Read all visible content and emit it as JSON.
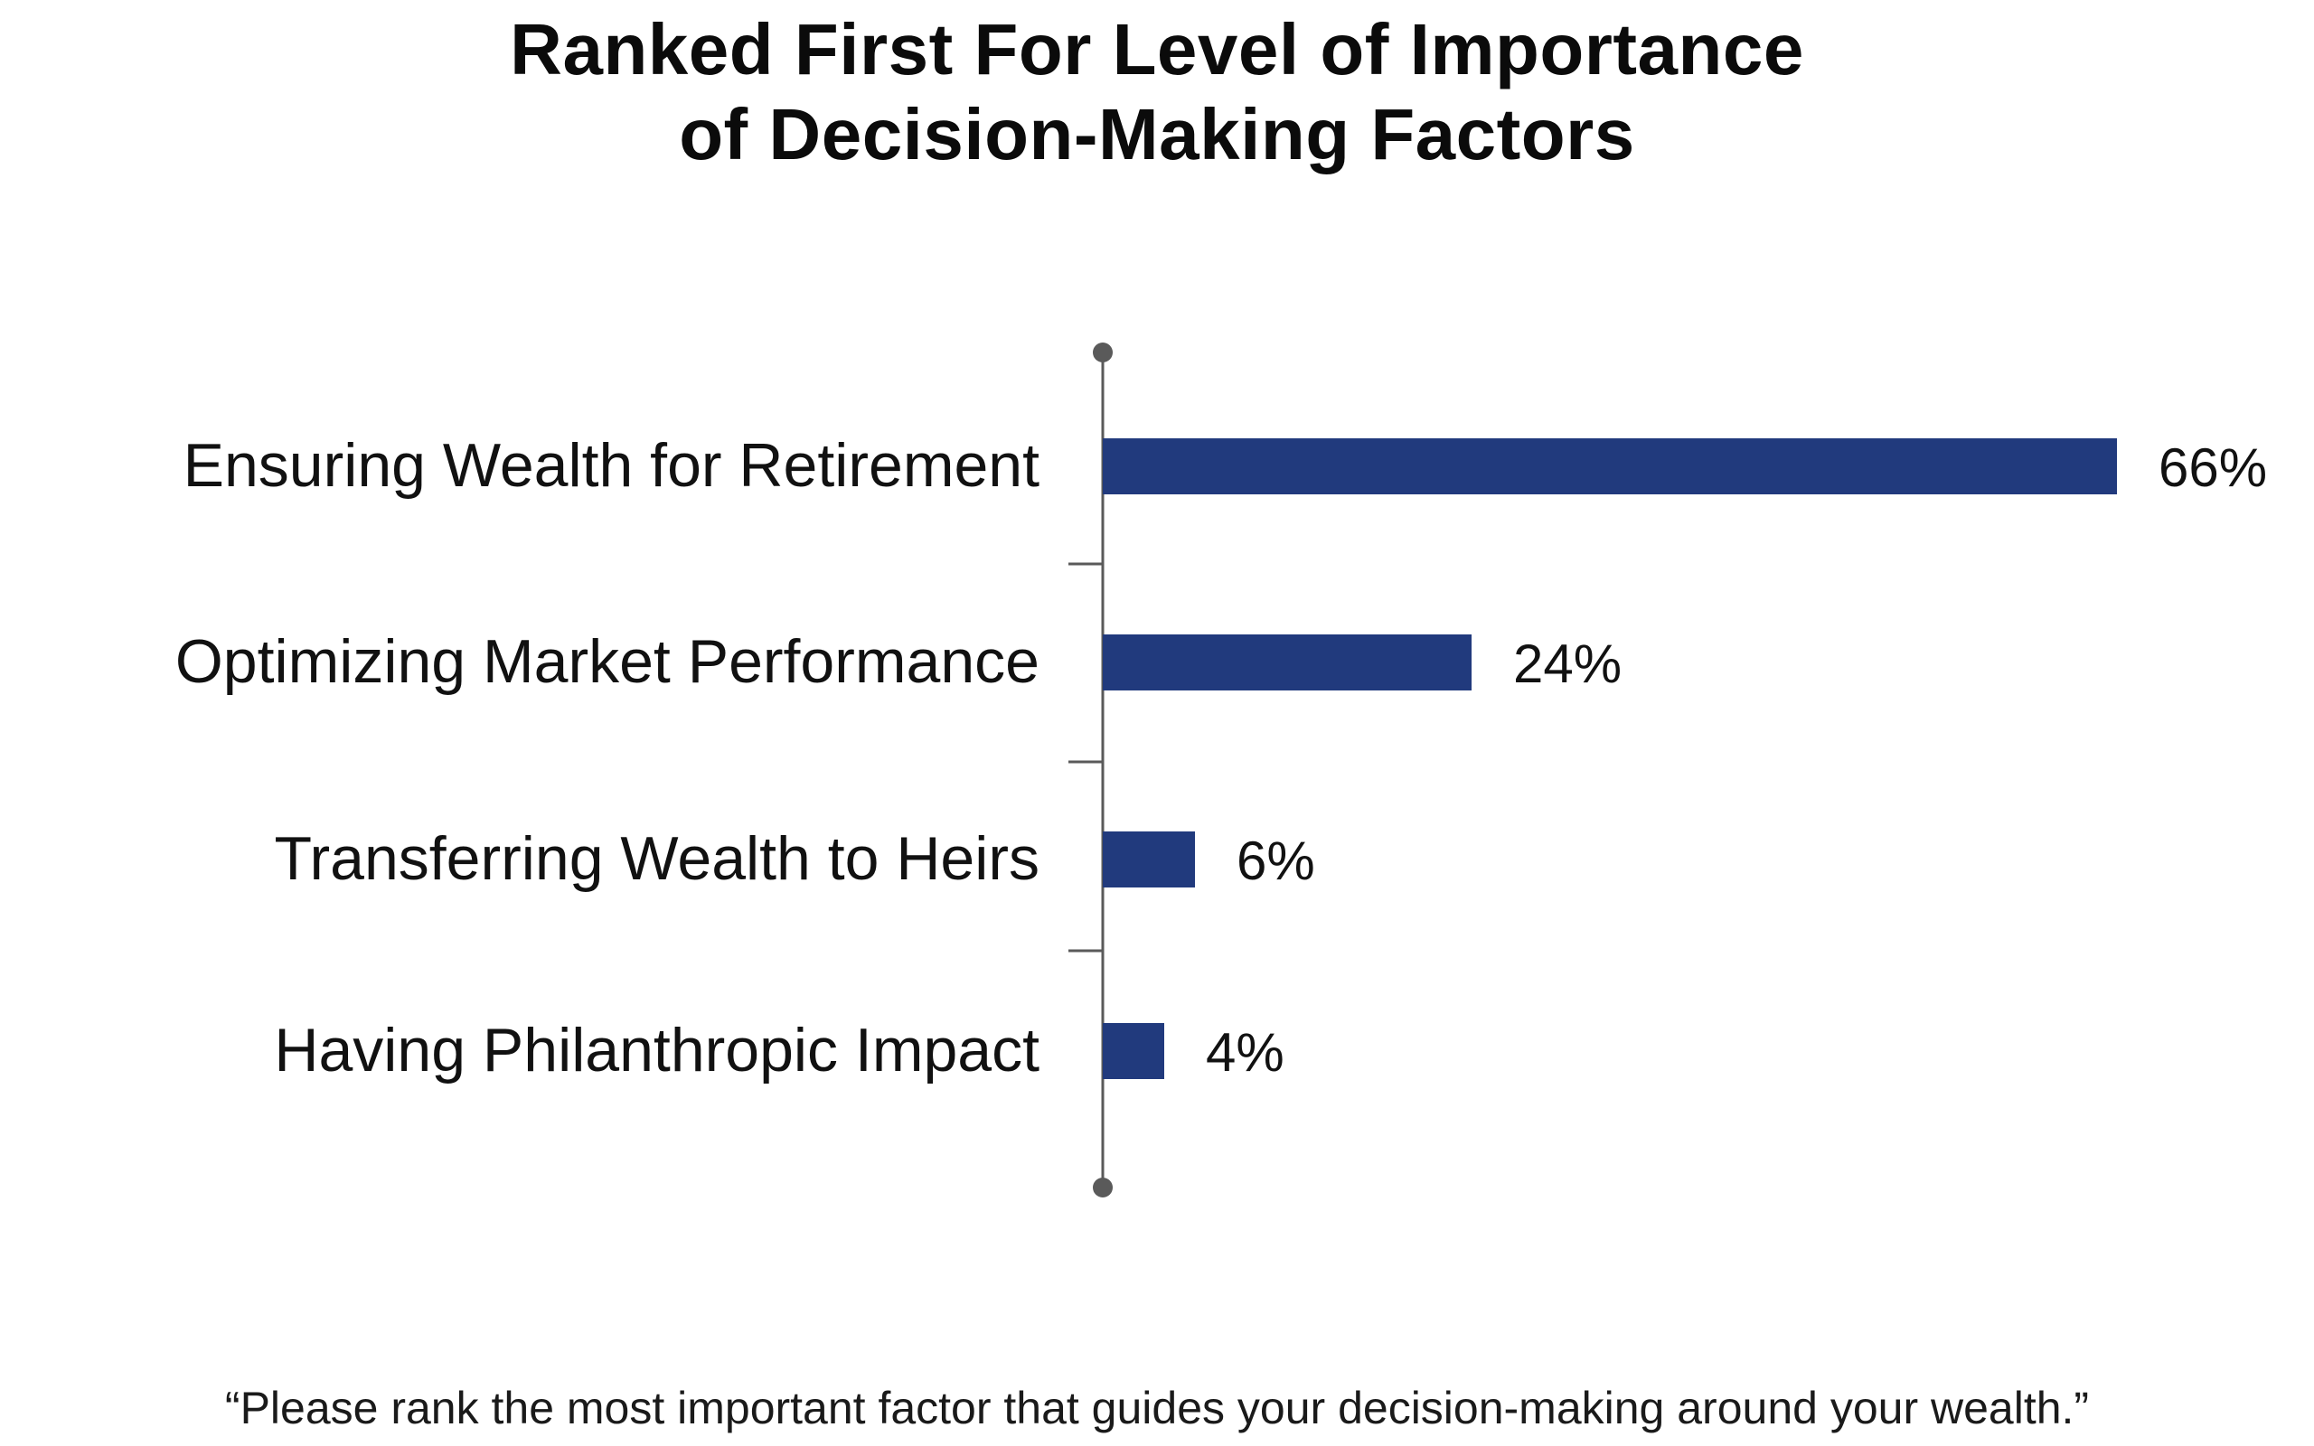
{
  "title": {
    "line1": "Ranked First For Level of Importance",
    "line2": "of Decision-Making Factors"
  },
  "footnote": "“Please rank the most important factor that guides your decision-making around your wealth.”",
  "colors": {
    "bar": "#213a7d",
    "axis": "#5a5a5a",
    "text": "#111111"
  },
  "chart_data": {
    "type": "bar",
    "orientation": "horizontal",
    "categories": [
      "Ensuring Wealth for Retirement",
      "Optimizing Market Performance",
      "Transferring Wealth to Heirs",
      "Having Philanthropic Impact"
    ],
    "values": [
      66,
      24,
      6,
      4
    ],
    "value_labels": [
      "66%",
      "24%",
      "6%",
      "4%"
    ],
    "unit": "%",
    "grid": false,
    "legend": "none"
  }
}
